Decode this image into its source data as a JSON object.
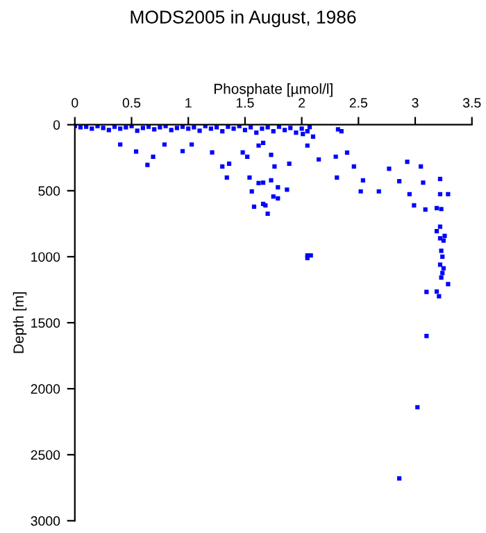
{
  "chart_data": {
    "type": "scatter",
    "title": "MODS2005 in August, 1986",
    "xlabel": "Phosphate [µmol/l]",
    "ylabel": "Depth [m]",
    "x": [
      0.0,
      0.05,
      0.1,
      0.15,
      0.2,
      0.25,
      0.3,
      0.35,
      0.4,
      0.45,
      0.5,
      0.55,
      0.6,
      0.65,
      0.7,
      0.75,
      0.8,
      0.85,
      0.9,
      0.95,
      1.0,
      1.05,
      1.1,
      1.15,
      1.2,
      1.25,
      1.3,
      1.35,
      1.4,
      1.45,
      1.5,
      1.55,
      1.6,
      1.65,
      1.7,
      1.75,
      1.8,
      1.85,
      1.9,
      1.95,
      2.0,
      2.05,
      2.1,
      2.35,
      0.4,
      0.54,
      0.64,
      0.69,
      0.79,
      0.95,
      1.03,
      1.21,
      1.36,
      1.34,
      1.52,
      1.54,
      1.62,
      1.56,
      1.58,
      1.66,
      1.7,
      1.73,
      1.75,
      1.76,
      1.48,
      1.3,
      1.66,
      1.62,
      1.73,
      1.66,
      1.79,
      1.79,
      1.87,
      1.68,
      1.89,
      2.05,
      2.15,
      2.3,
      2.4,
      2.31,
      2.46,
      2.54,
      2.52,
      2.68,
      2.77,
      2.86,
      2.95,
      2.93,
      3.05,
      3.07,
      2.99,
      3.09,
      3.19,
      3.22,
      3.22,
      3.29,
      3.23,
      2.32,
      2.07,
      2.01,
      3.22,
      3.25,
      3.23,
      3.24,
      3.22,
      3.25,
      3.24,
      3.23,
      3.29,
      3.19,
      3.1,
      3.21,
      3.19,
      3.26,
      3.22,
      2.05,
      2.08,
      2.05,
      3.1,
      3.02,
      2.86
    ],
    "values": [
      10,
      20,
      15,
      30,
      10,
      25,
      40,
      15,
      30,
      20,
      10,
      45,
      25,
      15,
      35,
      20,
      10,
      40,
      25,
      15,
      30,
      20,
      45,
      10,
      30,
      20,
      50,
      15,
      30,
      10,
      40,
      20,
      60,
      30,
      20,
      50,
      15,
      40,
      25,
      60,
      30,
      50,
      90,
      50,
      150,
      203,
      305,
      243,
      150,
      200,
      150,
      210,
      295,
      400,
      243,
      400,
      442,
      505,
      621,
      600,
      674,
      421,
      544,
      316,
      210,
      316,
      137,
      158,
      228,
      439,
      474,
      558,
      492,
      611,
      295,
      158,
      263,
      242,
      211,
      400,
      316,
      421,
      505,
      505,
      333,
      428,
      526,
      281,
      316,
      439,
      611,
      642,
      632,
      411,
      526,
      526,
      639,
      35,
      18,
      70,
      860,
      877,
      955,
      1000,
      1060,
      1088,
      1123,
      1158,
      1207,
      1264,
      1267,
      1299,
      807,
      842,
      772,
      990,
      990,
      1010,
      1600,
      2140,
      2680
    ],
    "color": "#0000ff",
    "marker": "square",
    "xlim": [
      0,
      3.5
    ],
    "xticks": [
      0,
      0.5,
      1,
      1.5,
      2,
      2.5,
      3,
      3.5
    ],
    "ylim": [
      3000,
      0
    ],
    "yticks": [
      0,
      500,
      1000,
      1500,
      2000,
      2500,
      3000
    ],
    "grid": false
  }
}
